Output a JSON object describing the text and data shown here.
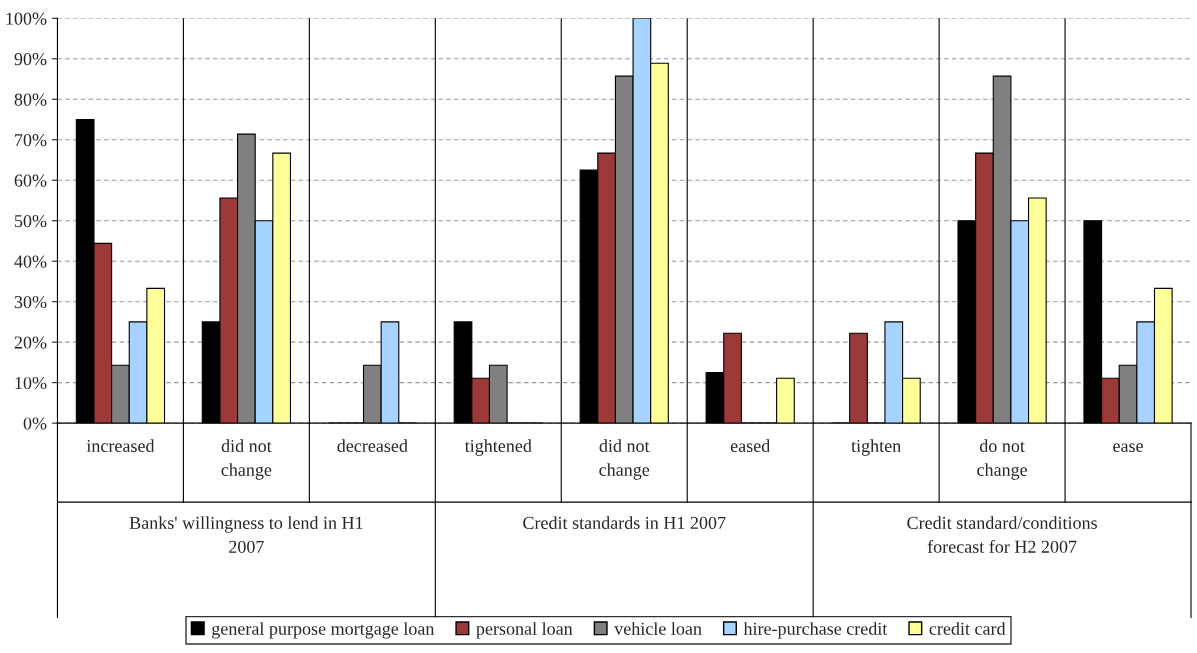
{
  "chart_data": {
    "type": "bar",
    "categories": [
      "increased",
      "did not\nchange",
      "decreased",
      "tightened",
      "did not\nchange",
      "eased",
      "tighten",
      "do not\nchange",
      "ease"
    ],
    "series": [
      {
        "name": "general purpose mortgage loan",
        "color": "#000000",
        "values": [
          75,
          25,
          0,
          25,
          62.5,
          12.5,
          0,
          50,
          50
        ]
      },
      {
        "name": "personal loan",
        "color": "#9c3a3a",
        "values": [
          44.4,
          55.6,
          0,
          11.1,
          66.7,
          22.2,
          22.2,
          66.7,
          11.1
        ]
      },
      {
        "name": "vehicle loan",
        "color": "#808080",
        "values": [
          14.3,
          71.4,
          14.3,
          14.3,
          85.7,
          0,
          0,
          85.7,
          14.3
        ]
      },
      {
        "name": "hire-purchase credit",
        "color": "#a6d3ff",
        "values": [
          25,
          50,
          25,
          0,
          100,
          0,
          25,
          50,
          25
        ]
      },
      {
        "name": "credit card",
        "color": "#ffff99",
        "values": [
          33.3,
          66.7,
          0,
          0,
          88.9,
          11.1,
          11.1,
          55.6,
          33.3
        ]
      }
    ],
    "ylim": [
      0,
      100
    ],
    "yticks": [
      {
        "value": 0,
        "label": "0%"
      },
      {
        "value": 10,
        "label": "10%"
      },
      {
        "value": 20,
        "label": "20%"
      },
      {
        "value": 30,
        "label": "30%"
      },
      {
        "value": 40,
        "label": "40%"
      },
      {
        "value": 50,
        "label": "50%"
      },
      {
        "value": 60,
        "label": "60%"
      },
      {
        "value": 70,
        "label": "70%"
      },
      {
        "value": 80,
        "label": "80%"
      },
      {
        "value": 90,
        "label": "90%"
      },
      {
        "value": 100,
        "label": "100%"
      }
    ],
    "annotations": [
      "Banks' willingness to lend in H1\n2007",
      "Credit standards in H1 2007",
      "Credit standard/conditions\nforecast for H2 2007"
    ],
    "grid": "y",
    "legend": "bottom"
  }
}
